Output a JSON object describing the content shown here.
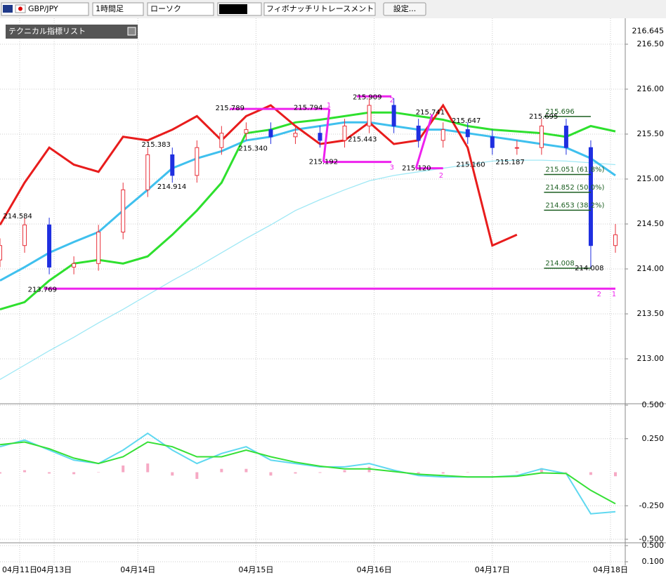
{
  "toolbar": {
    "pair": "GBP/JPY",
    "timeframe": "1時間足",
    "chart_style": "ローソク",
    "tool": "フィボナッチリトレースメント",
    "settings": "設定...",
    "indicator_list": "テクニカル指標リスト"
  },
  "chart_data": [
    {
      "type": "candlestick",
      "x": [
        0,
        5,
        10,
        15,
        20,
        25,
        30,
        35,
        40,
        45,
        50,
        55,
        60,
        65,
        70,
        75,
        80,
        85,
        90,
        95,
        100,
        105,
        110,
        115,
        120,
        125
      ],
      "open": [
        214.1,
        214.26,
        214.49,
        214.02,
        214.06,
        214.41,
        214.88,
        215.27,
        215.04,
        215.35,
        215.51,
        215.55,
        215.47,
        215.51,
        215.43,
        215.59,
        215.82,
        215.59,
        215.43,
        215.55,
        215.47,
        215.35,
        215.35,
        215.59,
        215.35,
        214.26
      ],
      "high": [
        214.34,
        214.57,
        214.57,
        214.14,
        214.49,
        214.96,
        215.35,
        215.35,
        215.43,
        215.59,
        215.63,
        215.63,
        215.59,
        215.59,
        215.67,
        215.9,
        215.9,
        215.67,
        215.63,
        215.63,
        215.55,
        215.43,
        215.67,
        215.67,
        215.43,
        214.5
      ],
      "low": [
        214.02,
        214.18,
        213.94,
        213.94,
        213.98,
        214.33,
        214.8,
        214.96,
        214.96,
        215.27,
        215.43,
        215.39,
        215.39,
        215.35,
        215.35,
        215.51,
        215.51,
        215.35,
        215.35,
        215.39,
        215.27,
        215.27,
        215.27,
        215.27,
        214.01,
        214.18
      ],
      "close": [
        214.26,
        214.49,
        214.02,
        214.06,
        214.41,
        214.88,
        215.27,
        215.04,
        215.35,
        215.51,
        215.55,
        215.47,
        215.51,
        215.43,
        215.59,
        215.82,
        215.59,
        215.43,
        215.55,
        215.47,
        215.35,
        215.35,
        215.59,
        215.35,
        214.26,
        214.38
      ],
      "up_color": "#e8303a",
      "down_color": "#1f2fe0",
      "lines": [
        {
          "color": "#9fe8f5",
          "width": 1.3,
          "values": [
            212.77,
            212.93,
            213.09,
            213.24,
            213.4,
            213.55,
            213.71,
            213.87,
            214.02,
            214.18,
            214.34,
            214.49,
            214.65,
            214.77,
            214.88,
            214.98,
            215.04,
            215.08,
            215.12,
            215.16,
            215.2,
            215.21,
            215.21,
            215.2,
            215.18,
            215.16
          ]
        },
        {
          "color": "#3fc0ee",
          "width": 3,
          "values": [
            213.87,
            214.02,
            214.18,
            214.3,
            214.41,
            214.65,
            214.88,
            215.12,
            215.23,
            215.31,
            215.43,
            215.47,
            215.55,
            215.59,
            215.63,
            215.63,
            215.59,
            215.55,
            215.55,
            215.51,
            215.47,
            215.43,
            215.39,
            215.35,
            215.23,
            215.04
          ]
        },
        {
          "color": "#2ee02e",
          "width": 3,
          "values": [
            213.55,
            213.63,
            213.87,
            214.06,
            214.1,
            214.06,
            214.14,
            214.38,
            214.65,
            214.96,
            215.51,
            215.55,
            215.63,
            215.66,
            215.7,
            215.74,
            215.74,
            215.7,
            215.66,
            215.59,
            215.55,
            215.53,
            215.51,
            215.47,
            215.59,
            215.53
          ]
        },
        {
          "color": "#e81c1c",
          "width": 3,
          "values": [
            214.49,
            214.96,
            215.35,
            215.16,
            215.08,
            215.47,
            215.43,
            215.55,
            215.7,
            215.43,
            215.7,
            215.82,
            215.59,
            215.39,
            215.43,
            215.63,
            215.39,
            215.43,
            215.82,
            215.35,
            214.26,
            214.38,
            null,
            null,
            null,
            null
          ]
        }
      ],
      "xlim": [
        0,
        127
      ],
      "xticks": [
        {
          "value": 4,
          "label": "04月11日"
        },
        {
          "value": 11,
          "label": "04月13日"
        },
        {
          "value": 28,
          "label": "04月14日"
        },
        {
          "value": 52,
          "label": "04月15日"
        },
        {
          "value": 76,
          "label": "04月16日"
        },
        {
          "value": 100,
          "label": "04月17日"
        },
        {
          "value": 124,
          "label": "04月18日"
        }
      ],
      "ylim": [
        212.5,
        216.82
      ],
      "yticks": [
        {
          "value": 213,
          "label": "213.00"
        },
        {
          "value": 213.5,
          "label": "213.50"
        },
        {
          "value": 214,
          "label": "214.00"
        },
        {
          "value": 214.5,
          "label": "214.50"
        },
        {
          "value": 215,
          "label": "215.00"
        },
        {
          "value": 215.5,
          "label": "215.50"
        },
        {
          "value": 216,
          "label": "216.00"
        },
        {
          "value": 216.5,
          "label": "216.50"
        }
      ],
      "current_price": {
        "value": 216.645,
        "label": "216.645"
      },
      "annotations": [
        {
          "x": 3.6,
          "value": 214.584,
          "label": "214.584"
        },
        {
          "x": 8.6,
          "value": 213.769,
          "label": "213.769"
        },
        {
          "x": 31.7,
          "value": 215.383,
          "label": "215.383"
        },
        {
          "x": 34.9,
          "value": 214.914,
          "label": "214.914"
        },
        {
          "x": 46.7,
          "value": 215.789,
          "label": "215.789"
        },
        {
          "x": 51.4,
          "value": 215.34,
          "label": "215.340"
        },
        {
          "x": 62.6,
          "value": 215.794,
          "label": "215.794"
        },
        {
          "x": 65.7,
          "value": 215.192,
          "label": "215.192"
        },
        {
          "x": 73.6,
          "value": 215.443,
          "label": "215.443"
        },
        {
          "x": 74.6,
          "value": 215.909,
          "label": "215.909"
        },
        {
          "x": 87.4,
          "value": 215.741,
          "label": "215.741"
        },
        {
          "x": 84.6,
          "value": 215.12,
          "label": "215.120"
        },
        {
          "x": 94.7,
          "value": 215.647,
          "label": "215.647"
        },
        {
          "x": 95.6,
          "value": 215.16,
          "label": "215.160"
        },
        {
          "x": 103.6,
          "value": 215.187,
          "label": "215.187"
        },
        {
          "x": 110.4,
          "value": 215.695,
          "label": "215.695"
        },
        {
          "x": 119.7,
          "value": 214.008,
          "label": "214.008"
        }
      ],
      "fib_levels": [
        {
          "x": [
            110.5,
            120
          ],
          "value": 215.696,
          "label": "215.696"
        },
        {
          "x": [
            110.5,
            120
          ],
          "value": 215.051,
          "label": "215.051 (61.8%)"
        },
        {
          "x": [
            110.5,
            120
          ],
          "value": 214.852,
          "label": "214.852 (50.0%)"
        },
        {
          "x": [
            110.5,
            120
          ],
          "value": 214.653,
          "label": "214.653 (38.2%)"
        },
        {
          "x": [
            110.5,
            120
          ],
          "value": 214.008,
          "label": "214.008"
        }
      ],
      "wave_color": "#ee22ee",
      "wave_lines": [
        {
          "x": [
            46.7,
            66.9
          ],
          "y": [
            215.78,
            215.78
          ]
        },
        {
          "x": [
            66.9,
            65.7
          ],
          "y": [
            215.78,
            215.19
          ]
        },
        {
          "x": [
            65.7,
            79.5
          ],
          "y": [
            215.19,
            215.19
          ]
        },
        {
          "x": [
            72.5,
            79.5
          ],
          "y": [
            215.92,
            215.92
          ]
        },
        {
          "x": [
            84.5,
            87.8
          ],
          "y": [
            215.12,
            215.72
          ]
        },
        {
          "x": [
            84.5,
            90
          ],
          "y": [
            215.12,
            215.12
          ]
        },
        {
          "x": [
            8.9,
            125
          ],
          "y": [
            213.78,
            213.78
          ]
        }
      ],
      "wave_labels": [
        {
          "x": 66.8,
          "value": 215.82,
          "label": "1"
        },
        {
          "x": 79.6,
          "value": 215.88,
          "label": "2"
        },
        {
          "x": 79.6,
          "value": 215.13,
          "label": "3"
        },
        {
          "x": 89.6,
          "value": 215.04,
          "label": "2"
        },
        {
          "x": 121.7,
          "value": 213.72,
          "label": "2"
        },
        {
          "x": 124.7,
          "value": 213.72,
          "label": "1"
        }
      ]
    },
    {
      "type": "macd",
      "x": [
        0,
        5,
        10,
        15,
        20,
        25,
        30,
        35,
        40,
        45,
        50,
        55,
        60,
        65,
        70,
        75,
        80,
        85,
        90,
        95,
        100,
        105,
        110,
        115,
        120,
        125
      ],
      "histogram": {
        "color": "#f6a9c4",
        "values": [
          -0.01,
          0.015,
          -0.01,
          -0.015,
          0,
          0.05,
          0.065,
          -0.025,
          -0.05,
          0.025,
          0.025,
          -0.025,
          -0.01,
          -0.005,
          0.015,
          0.04,
          0.01,
          -0.01,
          -0.01,
          0,
          0,
          0.005,
          0.03,
          0,
          -0.02,
          -0.03
        ]
      },
      "series": [
        {
          "color": "#5fd8f0",
          "values": [
            0.19,
            0.24,
            0.165,
            0.09,
            0.065,
            0.165,
            0.29,
            0.165,
            0.065,
            0.14,
            0.19,
            0.09,
            0.065,
            0.04,
            0.04,
            0.065,
            0.015,
            -0.025,
            -0.035,
            -0.035,
            -0.035,
            -0.025,
            0.025,
            -0.01,
            -0.31,
            -0.295
          ]
        },
        {
          "color": "#36e036",
          "values": [
            0.205,
            0.225,
            0.175,
            0.105,
            0.065,
            0.115,
            0.225,
            0.19,
            0.115,
            0.115,
            0.165,
            0.115,
            0.075,
            0.045,
            0.025,
            0.025,
            0.005,
            -0.015,
            -0.025,
            -0.035,
            -0.035,
            -0.03,
            -0.005,
            -0.01,
            -0.135,
            -0.235
          ]
        }
      ],
      "xlim": [
        0,
        127
      ],
      "ylim": [
        -0.5,
        0.5
      ],
      "yticks": [
        {
          "value": 0.5,
          "label": "0.500"
        },
        {
          "value": 0.25,
          "label": "0.250"
        },
        {
          "value": -0.25,
          "label": "-0.250"
        },
        {
          "value": -0.5,
          "label": "-0.500"
        }
      ]
    },
    {
      "type": "line",
      "ylim": [
        0.1,
        0.5
      ],
      "yticks": [
        {
          "value": 0.5,
          "label": "0.500"
        },
        {
          "value": 0.1,
          "label": "0.100"
        }
      ]
    }
  ]
}
